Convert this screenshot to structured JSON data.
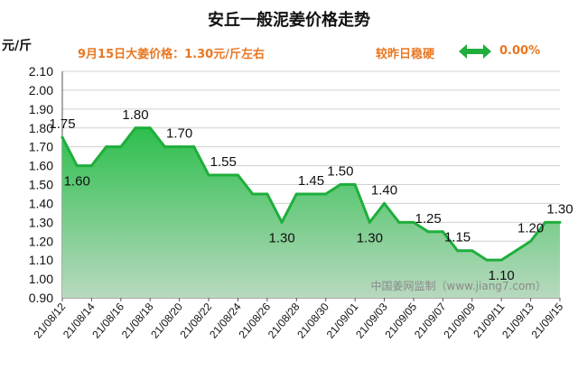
{
  "header": {
    "title": "安丘一般泥姜价格走势",
    "unit": "元/斤",
    "price_note": "9月15日大姜价格：1.30元/斤左右",
    "change_label": "较昨日稳硬",
    "change_value": "0.00%",
    "change_icon": "double-arrow-icon"
  },
  "colors": {
    "line": "#1fae3c",
    "fill_top": "#2dbf4d",
    "fill_bottom": "#b8d9bf",
    "accent": "#e87722",
    "arrow": "#1fae3c"
  },
  "chart_data": {
    "type": "area",
    "title": "安丘一般泥姜价格走势",
    "ylabel": "元/斤",
    "xlabel": "",
    "ylim": [
      0.9,
      2.1
    ],
    "ytick_step": 0.1,
    "grid": true,
    "watermark": "中国姜网监制（www.jiang7.com）",
    "x": [
      "21/08/12",
      "21/08/13",
      "21/08/14",
      "21/08/15",
      "21/08/16",
      "21/08/17",
      "21/08/18",
      "21/08/19",
      "21/08/20",
      "21/08/21",
      "21/08/22",
      "21/08/23",
      "21/08/24",
      "21/08/25",
      "21/08/26",
      "21/08/27",
      "21/08/28",
      "21/08/29",
      "21/08/30",
      "21/08/31",
      "21/09/01",
      "21/09/02",
      "21/09/03",
      "21/09/04",
      "21/09/05",
      "21/09/06",
      "21/09/07",
      "21/09/08",
      "21/09/09",
      "21/09/10",
      "21/09/11",
      "21/09/12",
      "21/09/13",
      "21/09/14",
      "21/09/15"
    ],
    "xtick_labels": [
      "21/08/12",
      "21/08/14",
      "21/08/16",
      "21/08/18",
      "21/08/20",
      "21/08/22",
      "21/08/24",
      "21/08/26",
      "21/08/28",
      "21/08/30",
      "21/09/01",
      "21/09/03",
      "21/09/05",
      "21/09/07",
      "21/09/09",
      "21/09/11",
      "21/09/13",
      "21/09/15"
    ],
    "values": [
      1.75,
      1.6,
      1.6,
      1.7,
      1.7,
      1.8,
      1.8,
      1.7,
      1.7,
      1.7,
      1.55,
      1.55,
      1.55,
      1.45,
      1.45,
      1.3,
      1.45,
      1.45,
      1.45,
      1.5,
      1.5,
      1.3,
      1.4,
      1.3,
      1.3,
      1.25,
      1.25,
      1.15,
      1.15,
      1.1,
      1.1,
      1.15,
      1.2,
      1.3,
      1.3
    ],
    "data_labels": [
      {
        "index": 0,
        "text": "1.75",
        "pos": "above"
      },
      {
        "index": 1,
        "text": "1.60",
        "pos": "below"
      },
      {
        "index": 5,
        "text": "1.80",
        "pos": "above"
      },
      {
        "index": 8,
        "text": "1.70",
        "pos": "above"
      },
      {
        "index": 11,
        "text": "1.55",
        "pos": "above"
      },
      {
        "index": 15,
        "text": "1.30",
        "pos": "below"
      },
      {
        "index": 17,
        "text": "1.45",
        "pos": "above"
      },
      {
        "index": 19,
        "text": "1.50",
        "pos": "above"
      },
      {
        "index": 21,
        "text": "1.30",
        "pos": "below"
      },
      {
        "index": 22,
        "text": "1.40",
        "pos": "above"
      },
      {
        "index": 25,
        "text": "1.25",
        "pos": "above"
      },
      {
        "index": 27,
        "text": "1.15",
        "pos": "above"
      },
      {
        "index": 30,
        "text": "1.10",
        "pos": "below"
      },
      {
        "index": 32,
        "text": "1.20",
        "pos": "above"
      },
      {
        "index": 34,
        "text": "1.30",
        "pos": "above"
      }
    ]
  }
}
